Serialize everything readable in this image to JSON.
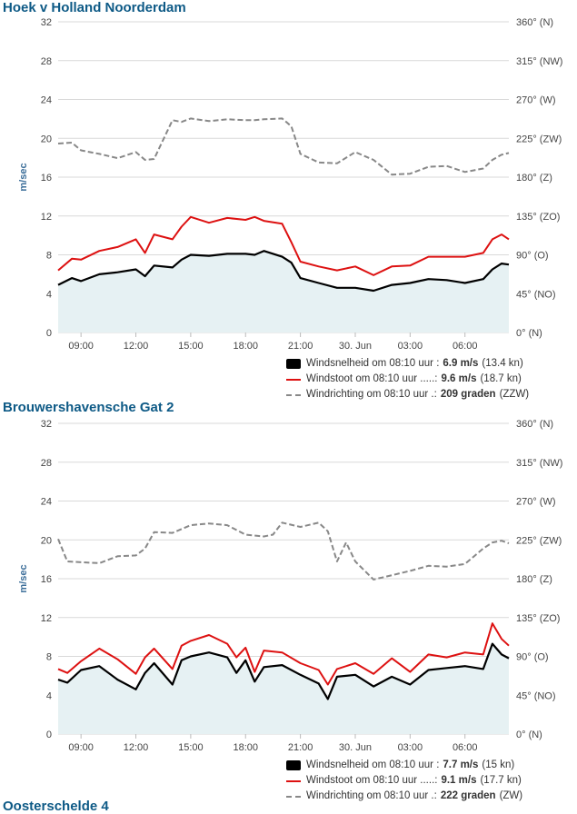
{
  "chart_data": [
    {
      "type": "line",
      "title": "Hoek v Holland Noorderdam",
      "ylabel": "m/sec",
      "ylim": [
        0,
        32
      ],
      "y_ticks": [
        "0",
        "4",
        "8",
        "12",
        "16",
        "20",
        "24",
        "28",
        "32"
      ],
      "y2_ticks": [
        "0° (N)",
        "45° (NO)",
        "90° (O)",
        "135° (ZO)",
        "180° (Z)",
        "225° (ZW)",
        "270° (W)",
        "315° (NW)",
        "360° (N)"
      ],
      "x_ticks": [
        "09:00",
        "12:00",
        "15:00",
        "18:00",
        "21:00",
        "30. Jun",
        "03:00",
        "06:00"
      ],
      "x_tick_hours": [
        9,
        12,
        15,
        18,
        21,
        24,
        27,
        30
      ],
      "xlim_hours": [
        7.75,
        32.4
      ],
      "grid": true,
      "legend_position": "bottom-right",
      "series": [
        {
          "name": "Windsnelheid",
          "style": "line-area",
          "color": "#000000",
          "x_hours": [
            7.75,
            8.5,
            9,
            10,
            11,
            12,
            12.5,
            13,
            14,
            14.5,
            15,
            16,
            17,
            18,
            18.5,
            19,
            20,
            20.5,
            21,
            22,
            23,
            24,
            25,
            26,
            27,
            28,
            29,
            30,
            31,
            31.5,
            32,
            32.4
          ],
          "values": [
            4.9,
            5.6,
            5.3,
            6.0,
            6.2,
            6.5,
            5.8,
            6.9,
            6.7,
            7.5,
            8.0,
            7.9,
            8.1,
            8.1,
            8.0,
            8.4,
            7.8,
            7.2,
            5.6,
            5.1,
            4.6,
            4.6,
            4.3,
            4.9,
            5.1,
            5.5,
            5.4,
            5.1,
            5.5,
            6.5,
            7.1,
            7.0
          ]
        },
        {
          "name": "Windstoot",
          "style": "line",
          "color": "#dd1111",
          "x_hours": [
            7.75,
            8.5,
            9,
            10,
            11,
            12,
            12.5,
            13,
            14,
            14.5,
            15,
            16,
            17,
            18,
            18.5,
            19,
            20,
            20.5,
            21,
            22,
            23,
            24,
            25,
            26,
            27,
            28,
            29,
            30,
            31,
            31.5,
            32,
            32.4
          ],
          "values": [
            6.4,
            7.6,
            7.5,
            8.4,
            8.8,
            9.6,
            8.2,
            10.1,
            9.6,
            10.9,
            11.9,
            11.3,
            11.8,
            11.6,
            11.9,
            11.5,
            11.2,
            9.3,
            7.3,
            6.8,
            6.4,
            6.8,
            5.9,
            6.8,
            6.9,
            7.8,
            7.8,
            7.8,
            8.2,
            9.6,
            10.1,
            9.6
          ]
        },
        {
          "name": "Windrichting",
          "style": "dashed",
          "color": "#888888",
          "axis": "y2",
          "x_hours": [
            7.75,
            8.5,
            9,
            10,
            11,
            12,
            12.5,
            13,
            14,
            14.5,
            15,
            16,
            17,
            18,
            18.5,
            19,
            20,
            20.5,
            21,
            22,
            23,
            24,
            25,
            26,
            27,
            28,
            29,
            30,
            31,
            31.5,
            32,
            32.4
          ],
          "values": [
            219,
            220,
            211,
            207,
            202,
            209,
            200,
            201,
            246,
            244,
            248,
            245,
            247,
            246,
            246,
            247,
            248,
            239,
            207,
            197,
            196,
            209,
            200,
            183,
            184,
            192,
            193,
            186,
            190,
            200,
            206,
            208
          ]
        }
      ],
      "legend": [
        {
          "label": "Windsnelheid om 08:10 uur :",
          "value": "6.9 m/s",
          "extra": "(13.4 kn)"
        },
        {
          "label": "Windstoot om 08:10 uur .....:",
          "value": "9.6 m/s",
          "extra": "(18.7 kn)"
        },
        {
          "label": "Windrichting om 08:10 uur .:",
          "value": "209 graden",
          "extra": "(ZZW)"
        }
      ]
    },
    {
      "type": "line",
      "title": "Brouwershavensche Gat 2",
      "ylabel": "m/sec",
      "ylim": [
        0,
        32
      ],
      "y_ticks": [
        "0",
        "4",
        "8",
        "12",
        "16",
        "20",
        "24",
        "28",
        "32"
      ],
      "y2_ticks": [
        "0° (N)",
        "45° (NO)",
        "90° (O)",
        "135° (ZO)",
        "180° (Z)",
        "225° (ZW)",
        "270° (W)",
        "315° (NW)",
        "360° (N)"
      ],
      "x_ticks": [
        "09:00",
        "12:00",
        "15:00",
        "18:00",
        "21:00",
        "30. Jun",
        "03:00",
        "06:00"
      ],
      "x_tick_hours": [
        9,
        12,
        15,
        18,
        21,
        24,
        27,
        30
      ],
      "xlim_hours": [
        7.75,
        32.4
      ],
      "grid": true,
      "legend_position": "bottom-right",
      "series": [
        {
          "name": "Windsnelheid",
          "style": "line-area",
          "color": "#000000",
          "x_hours": [
            7.75,
            8.25,
            9,
            10,
            11,
            12,
            12.5,
            13,
            14,
            14.5,
            15,
            16,
            17,
            17.5,
            18,
            18.5,
            19,
            20,
            21,
            22,
            22.5,
            23,
            24,
            25,
            26,
            27,
            28,
            29,
            30,
            31,
            31.5,
            32,
            32.4
          ],
          "values": [
            5.6,
            5.3,
            6.6,
            7.0,
            5.6,
            4.6,
            6.3,
            7.3,
            5.1,
            7.6,
            8.0,
            8.4,
            7.9,
            6.3,
            7.6,
            5.4,
            6.9,
            7.1,
            6.1,
            5.2,
            3.6,
            5.9,
            6.1,
            4.9,
            5.9,
            5.1,
            6.6,
            6.8,
            7.0,
            6.7,
            9.3,
            8.2,
            7.8
          ]
        },
        {
          "name": "Windstoot",
          "style": "line",
          "color": "#dd1111",
          "x_hours": [
            7.75,
            8.25,
            9,
            10,
            11,
            12,
            12.5,
            13,
            14,
            14.5,
            15,
            16,
            17,
            17.5,
            18,
            18.5,
            19,
            20,
            21,
            22,
            22.5,
            23,
            24,
            25,
            26,
            27,
            28,
            29,
            30,
            31,
            31.5,
            32,
            32.4
          ],
          "values": [
            6.7,
            6.3,
            7.5,
            8.8,
            7.7,
            6.2,
            7.9,
            8.8,
            6.7,
            9.1,
            9.6,
            10.2,
            9.3,
            7.9,
            8.9,
            6.4,
            8.6,
            8.4,
            7.3,
            6.6,
            5.1,
            6.7,
            7.3,
            6.2,
            7.8,
            6.4,
            8.2,
            7.9,
            8.4,
            8.2,
            11.4,
            9.8,
            9.1
          ]
        },
        {
          "name": "Windrichting",
          "style": "dashed",
          "color": "#888888",
          "axis": "y2",
          "x_hours": [
            7.75,
            8.25,
            9,
            10,
            11,
            12,
            12.5,
            13,
            14,
            15,
            16,
            17,
            18,
            19,
            19.5,
            20,
            21,
            22,
            22.5,
            23,
            23.5,
            24,
            25,
            26,
            27,
            28,
            29,
            30,
            31,
            31.5,
            32,
            32.4
          ],
          "values": [
            226,
            200,
            199,
            198,
            206,
            207,
            215,
            234,
            233,
            242,
            244,
            242,
            231,
            229,
            231,
            245,
            240,
            245,
            235,
            200,
            222,
            200,
            179,
            184,
            189,
            195,
            194,
            197,
            215,
            222,
            224,
            221
          ]
        }
      ],
      "legend": [
        {
          "label": "Windsnelheid om 08:10 uur :",
          "value": "7.7 m/s",
          "extra": "(15 kn)"
        },
        {
          "label": "Windstoot om 08:10 uur .....:",
          "value": "9.1 m/s",
          "extra": "(17.7 kn)"
        },
        {
          "label": "Windrichting om 08:10 uur .:",
          "value": "222 graden",
          "extra": "(ZW)"
        }
      ]
    }
  ],
  "colors": {
    "title": "#0e5a86",
    "speed_line": "#000000",
    "speed_fill": "#e6f1f3",
    "gust_line": "#dd1111",
    "direction_line": "#888888",
    "grid": "#d9d9d9",
    "ylabel": "#3d6f9a"
  },
  "next_station_title_partial": "Oosterschelde 4"
}
